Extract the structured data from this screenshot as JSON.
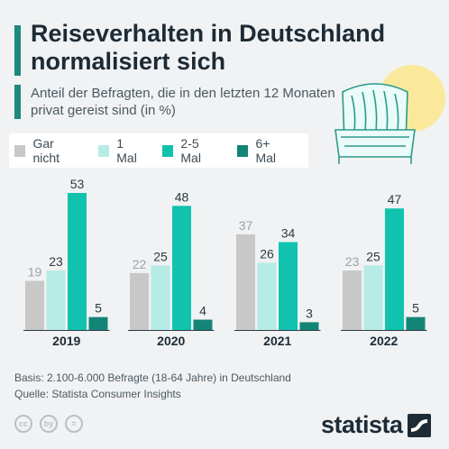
{
  "header": {
    "title": "Reiseverhalten in Deutschland normalisiert sich",
    "subtitle": "Anteil der Befragten, die in den letzten 12 Monaten privat gereist sind (in %)"
  },
  "footer": {
    "basis": "Basis: 2.100-6.000 Befragte (18-64 Jahre) in Deutschland",
    "source": "Quelle: Statista Consumer Insights",
    "cc_icons": [
      "cc",
      "by",
      "="
    ],
    "logo": "statista"
  },
  "colors": {
    "background": "#f1f2f3",
    "accent": "#1c8a7e",
    "sun": "#fbe99b"
  },
  "chart_data": {
    "type": "bar",
    "categories": [
      "2019",
      "2020",
      "2021",
      "2022"
    ],
    "series": [
      {
        "name": "Gar nicht",
        "color": "#c8c8c8",
        "values": [
          19,
          22,
          37,
          23
        ]
      },
      {
        "name": "1 Mal",
        "color": "#b7ebe6",
        "values": [
          23,
          25,
          26,
          25
        ]
      },
      {
        "name": "2-5 Mal",
        "color": "#11c3ae",
        "values": [
          53,
          48,
          34,
          47
        ]
      },
      {
        "name": "6+ Mal",
        "color": "#138576",
        "values": [
          5,
          4,
          3,
          5
        ]
      }
    ],
    "ylim": [
      0,
      53
    ],
    "legend": "top-left",
    "grid": false
  }
}
